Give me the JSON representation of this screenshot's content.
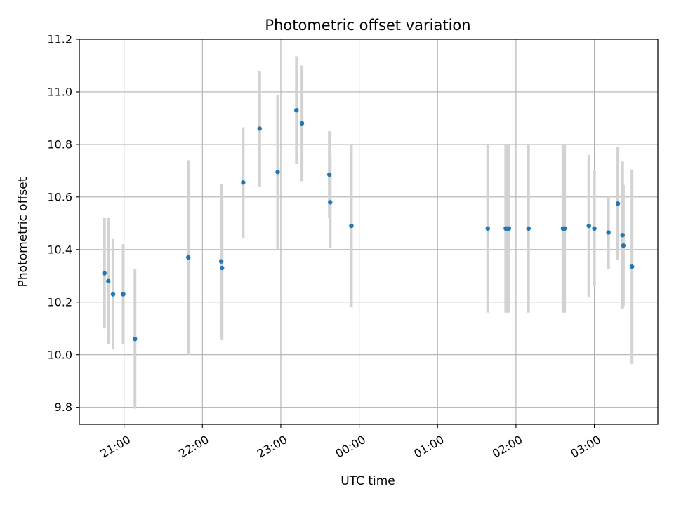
{
  "chart_data": {
    "type": "scatter",
    "title": "Photometric offset variation",
    "xlabel": "UTC time",
    "ylabel": "Photometric offset",
    "ylim": [
      9.735,
      11.2
    ],
    "xlim_hours": [
      20.43,
      27.81
    ],
    "grid": true,
    "x_ticks": [
      {
        "hour": 21,
        "label": "21:00"
      },
      {
        "hour": 22,
        "label": "22:00"
      },
      {
        "hour": 23,
        "label": "23:00"
      },
      {
        "hour": 24,
        "label": "00:00"
      },
      {
        "hour": 25,
        "label": "01:00"
      },
      {
        "hour": 26,
        "label": "02:00"
      },
      {
        "hour": 27,
        "label": "03:00"
      }
    ],
    "y_ticks": [
      {
        "value": 9.8,
        "label": "9.8"
      },
      {
        "value": 10.0,
        "label": "10.0"
      },
      {
        "value": 10.2,
        "label": "10.2"
      },
      {
        "value": 10.4,
        "label": "10.4"
      },
      {
        "value": 10.6,
        "label": "10.6"
      },
      {
        "value": 10.8,
        "label": "10.8"
      },
      {
        "value": 11.0,
        "label": "11.0"
      },
      {
        "value": 11.2,
        "label": "11.2"
      }
    ],
    "points": [
      {
        "hour": 20.75,
        "y": 10.31,
        "err": 0.21
      },
      {
        "hour": 20.8,
        "y": 10.28,
        "err": 0.24
      },
      {
        "hour": 20.86,
        "y": 10.23,
        "err": 0.21
      },
      {
        "hour": 20.99,
        "y": 10.23,
        "err": 0.19
      },
      {
        "hour": 21.14,
        "y": 10.06,
        "err": 0.265
      },
      {
        "hour": 21.82,
        "y": 10.37,
        "err": 0.37
      },
      {
        "hour": 22.24,
        "y": 10.355,
        "err": 0.295
      },
      {
        "hour": 22.25,
        "y": 10.33,
        "err": 0.275
      },
      {
        "hour": 22.52,
        "y": 10.655,
        "err": 0.21
      },
      {
        "hour": 22.73,
        "y": 10.86,
        "err": 0.22
      },
      {
        "hour": 22.96,
        "y": 10.695,
        "err": 0.295
      },
      {
        "hour": 23.2,
        "y": 10.93,
        "err": 0.205
      },
      {
        "hour": 23.27,
        "y": 10.88,
        "err": 0.22
      },
      {
        "hour": 23.62,
        "y": 10.685,
        "err": 0.165
      },
      {
        "hour": 23.63,
        "y": 10.58,
        "err": 0.175
      },
      {
        "hour": 23.9,
        "y": 10.49,
        "err": 0.31
      },
      {
        "hour": 25.64,
        "y": 10.48,
        "err": 0.32
      },
      {
        "hour": 25.87,
        "y": 10.48,
        "err": 0.32
      },
      {
        "hour": 25.89,
        "y": 10.48,
        "err": 0.32
      },
      {
        "hour": 25.91,
        "y": 10.48,
        "err": 0.32
      },
      {
        "hour": 26.16,
        "y": 10.48,
        "err": 0.32
      },
      {
        "hour": 26.6,
        "y": 10.48,
        "err": 0.32
      },
      {
        "hour": 26.62,
        "y": 10.48,
        "err": 0.32
      },
      {
        "hour": 26.93,
        "y": 10.49,
        "err": 0.27
      },
      {
        "hour": 27.0,
        "y": 10.48,
        "err": 0.22
      },
      {
        "hour": 27.18,
        "y": 10.465,
        "err": 0.14
      },
      {
        "hour": 27.3,
        "y": 10.575,
        "err": 0.215
      },
      {
        "hour": 27.36,
        "y": 10.455,
        "err": 0.28
      },
      {
        "hour": 27.37,
        "y": 10.415,
        "err": 0.23
      },
      {
        "hour": 27.48,
        "y": 10.335,
        "err": 0.37
      }
    ],
    "colors": {
      "marker": "#1f77b4",
      "errorbar": "#d3d3d3",
      "grid": "#b0b0b0",
      "axes": "#000000"
    }
  }
}
